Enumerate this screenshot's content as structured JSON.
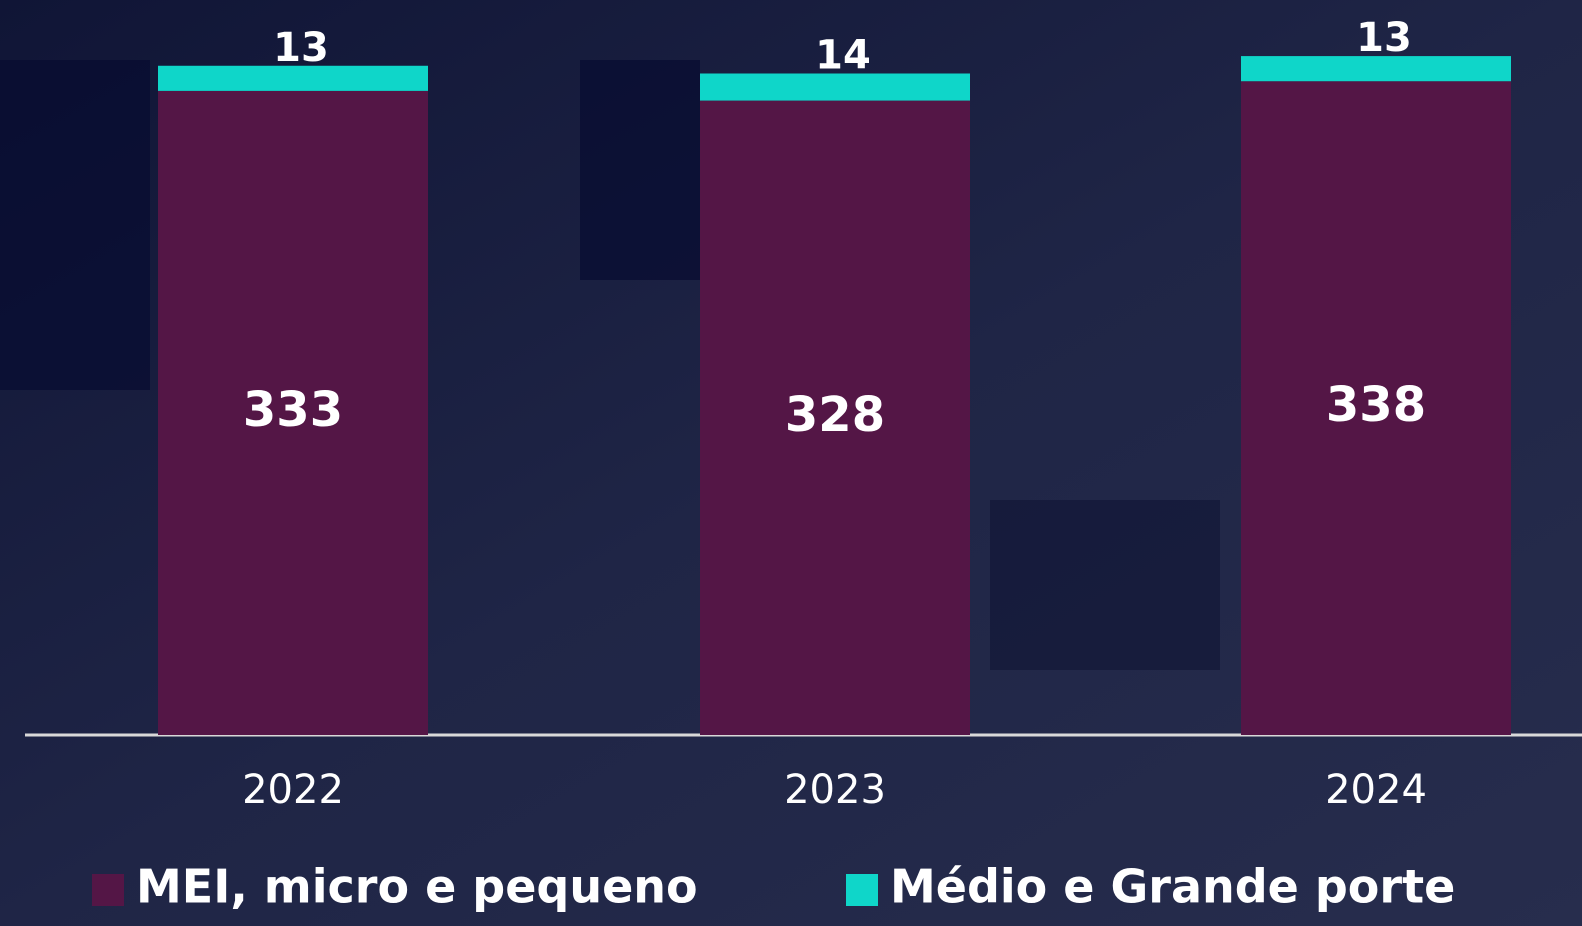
{
  "chart_data": {
    "type": "stacked_bar",
    "categories": [
      "2022",
      "2023",
      "2024"
    ],
    "series": [
      {
        "name": "MEI, micro e pequeno",
        "color": "#541646",
        "values": [
          333,
          328,
          338
        ]
      },
      {
        "name": "Médio e Grande porte",
        "color": "#0fd6c9",
        "values": [
          13,
          14,
          13
        ]
      }
    ],
    "ylim": [
      0,
      380
    ]
  }
}
